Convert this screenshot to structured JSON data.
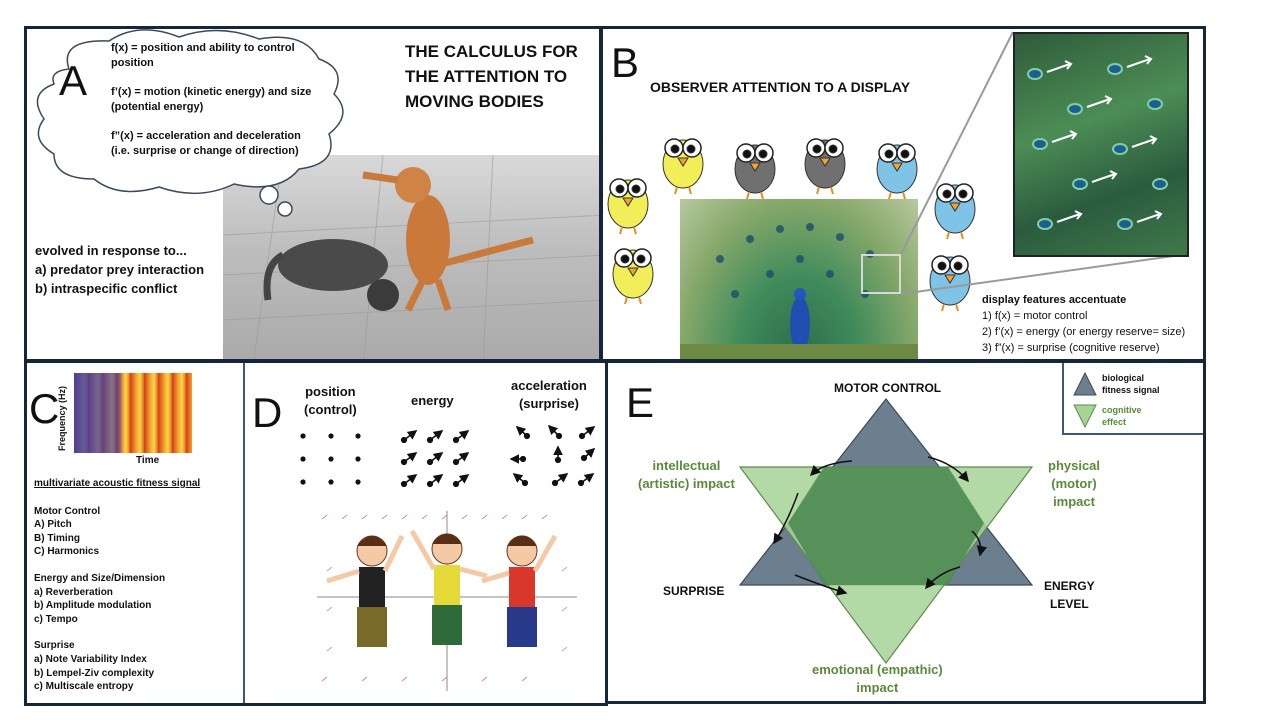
{
  "panelA": {
    "letter": "A",
    "cloud_lines": [
      "f(x) = position and ability to control",
      "position",
      "f’(x) = motion (kinetic energy) and size",
      "(potential energy)",
      "f”(x) = acceleration and deceleration",
      " (i.e. surprise or change of direction)"
    ],
    "title_lines": [
      "THE CALCULUS FOR",
      "THE ATTENTION TO",
      "MOVING BODIES"
    ],
    "evolved_lines": [
      "evolved in response to...",
      "a) predator prey interaction",
      "b) intraspecific conflict"
    ]
  },
  "panelB": {
    "letter": "B",
    "title": "OBSERVER ATTENTION TO A DISPLAY",
    "features_title": "display features accentuate",
    "features": [
      "1) f(x) = motor control",
      "2) f’(x) = energy (or energy reserve= size)",
      "3) f”(x) = surprise (cognitive reserve)"
    ],
    "colors": {
      "yellow_bird": "#f2ee5a",
      "gray_bird": "#707070",
      "blue_bird": "#7fc3e6"
    }
  },
  "panelC": {
    "letter": "C",
    "ylabel": "Frequency (Hz)",
    "xlabel": "Time",
    "heading": "multivariate acoustic fitness signal",
    "groups": [
      {
        "title": "Motor Control",
        "items": [
          "A)  Pitch",
          "B)  Timing",
          "C)  Harmonics"
        ]
      },
      {
        "title": "Energy and Size/Dimension",
        "items": [
          "a)  Reverberation",
          "b)  Amplitude modulation",
          "c)  Tempo"
        ]
      },
      {
        "title": "Surprise",
        "items": [
          "a)  Note Variability Index",
          "b)  Lempel-Ziv complexity",
          "c)  Multiscale entropy"
        ]
      }
    ]
  },
  "panelD": {
    "letter": "D",
    "col1": [
      "position",
      "(control)"
    ],
    "col2": [
      "energy"
    ],
    "col3": [
      "acceleration",
      "(surprise)"
    ]
  },
  "panelE": {
    "letter": "E",
    "top": "MOTOR CONTROL",
    "left": "SURPRISE",
    "right_lines": [
      "ENERGY",
      "LEVEL"
    ],
    "upper_left_lines": [
      "intellectual",
      "(artistic) impact"
    ],
    "upper_right_lines": [
      "physical",
      "(motor)",
      "impact"
    ],
    "bottom_lines": [
      "emotional (empathic)",
      "impact"
    ],
    "legend": [
      {
        "lines": [
          "biological",
          "fitness signal"
        ],
        "color": "#6b7f8e"
      },
      {
        "lines": [
          "cognitive",
          "effect"
        ],
        "color": "#a6d396"
      }
    ],
    "colors": {
      "blue_triangle": "#6b7f8e",
      "green_triangle": "#9ccc8a",
      "overlap": "#4e8b52",
      "label_green": "#5a8a3c"
    }
  }
}
